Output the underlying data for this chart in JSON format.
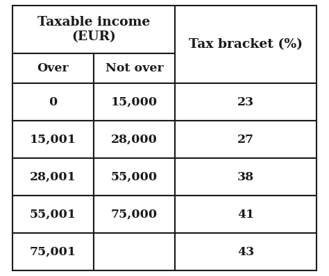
{
  "title_col1": "Taxable income\n(EUR)",
  "title_col2": "Tax bracket (%)",
  "subheader_over": "Over",
  "subheader_not_over": "Not over",
  "rows": [
    {
      "over": "0",
      "not_over": "15,000",
      "bracket": "23"
    },
    {
      "over": "15,001",
      "not_over": "28,000",
      "bracket": "27"
    },
    {
      "over": "28,001",
      "not_over": "55,000",
      "bracket": "38"
    },
    {
      "over": "55,001",
      "not_over": "75,000",
      "bracket": "41"
    },
    {
      "over": "75,001",
      "not_over": "",
      "bracket": "43"
    }
  ],
  "bg_color": "#ffffff",
  "border_color": "#1a1a1a",
  "text_color": "#1a1a1a",
  "header_fontsize": 13.5,
  "subheader_fontsize": 12.5,
  "cell_fontsize": 12.5,
  "figsize": [
    4.74,
    3.98
  ],
  "dpi": 100
}
